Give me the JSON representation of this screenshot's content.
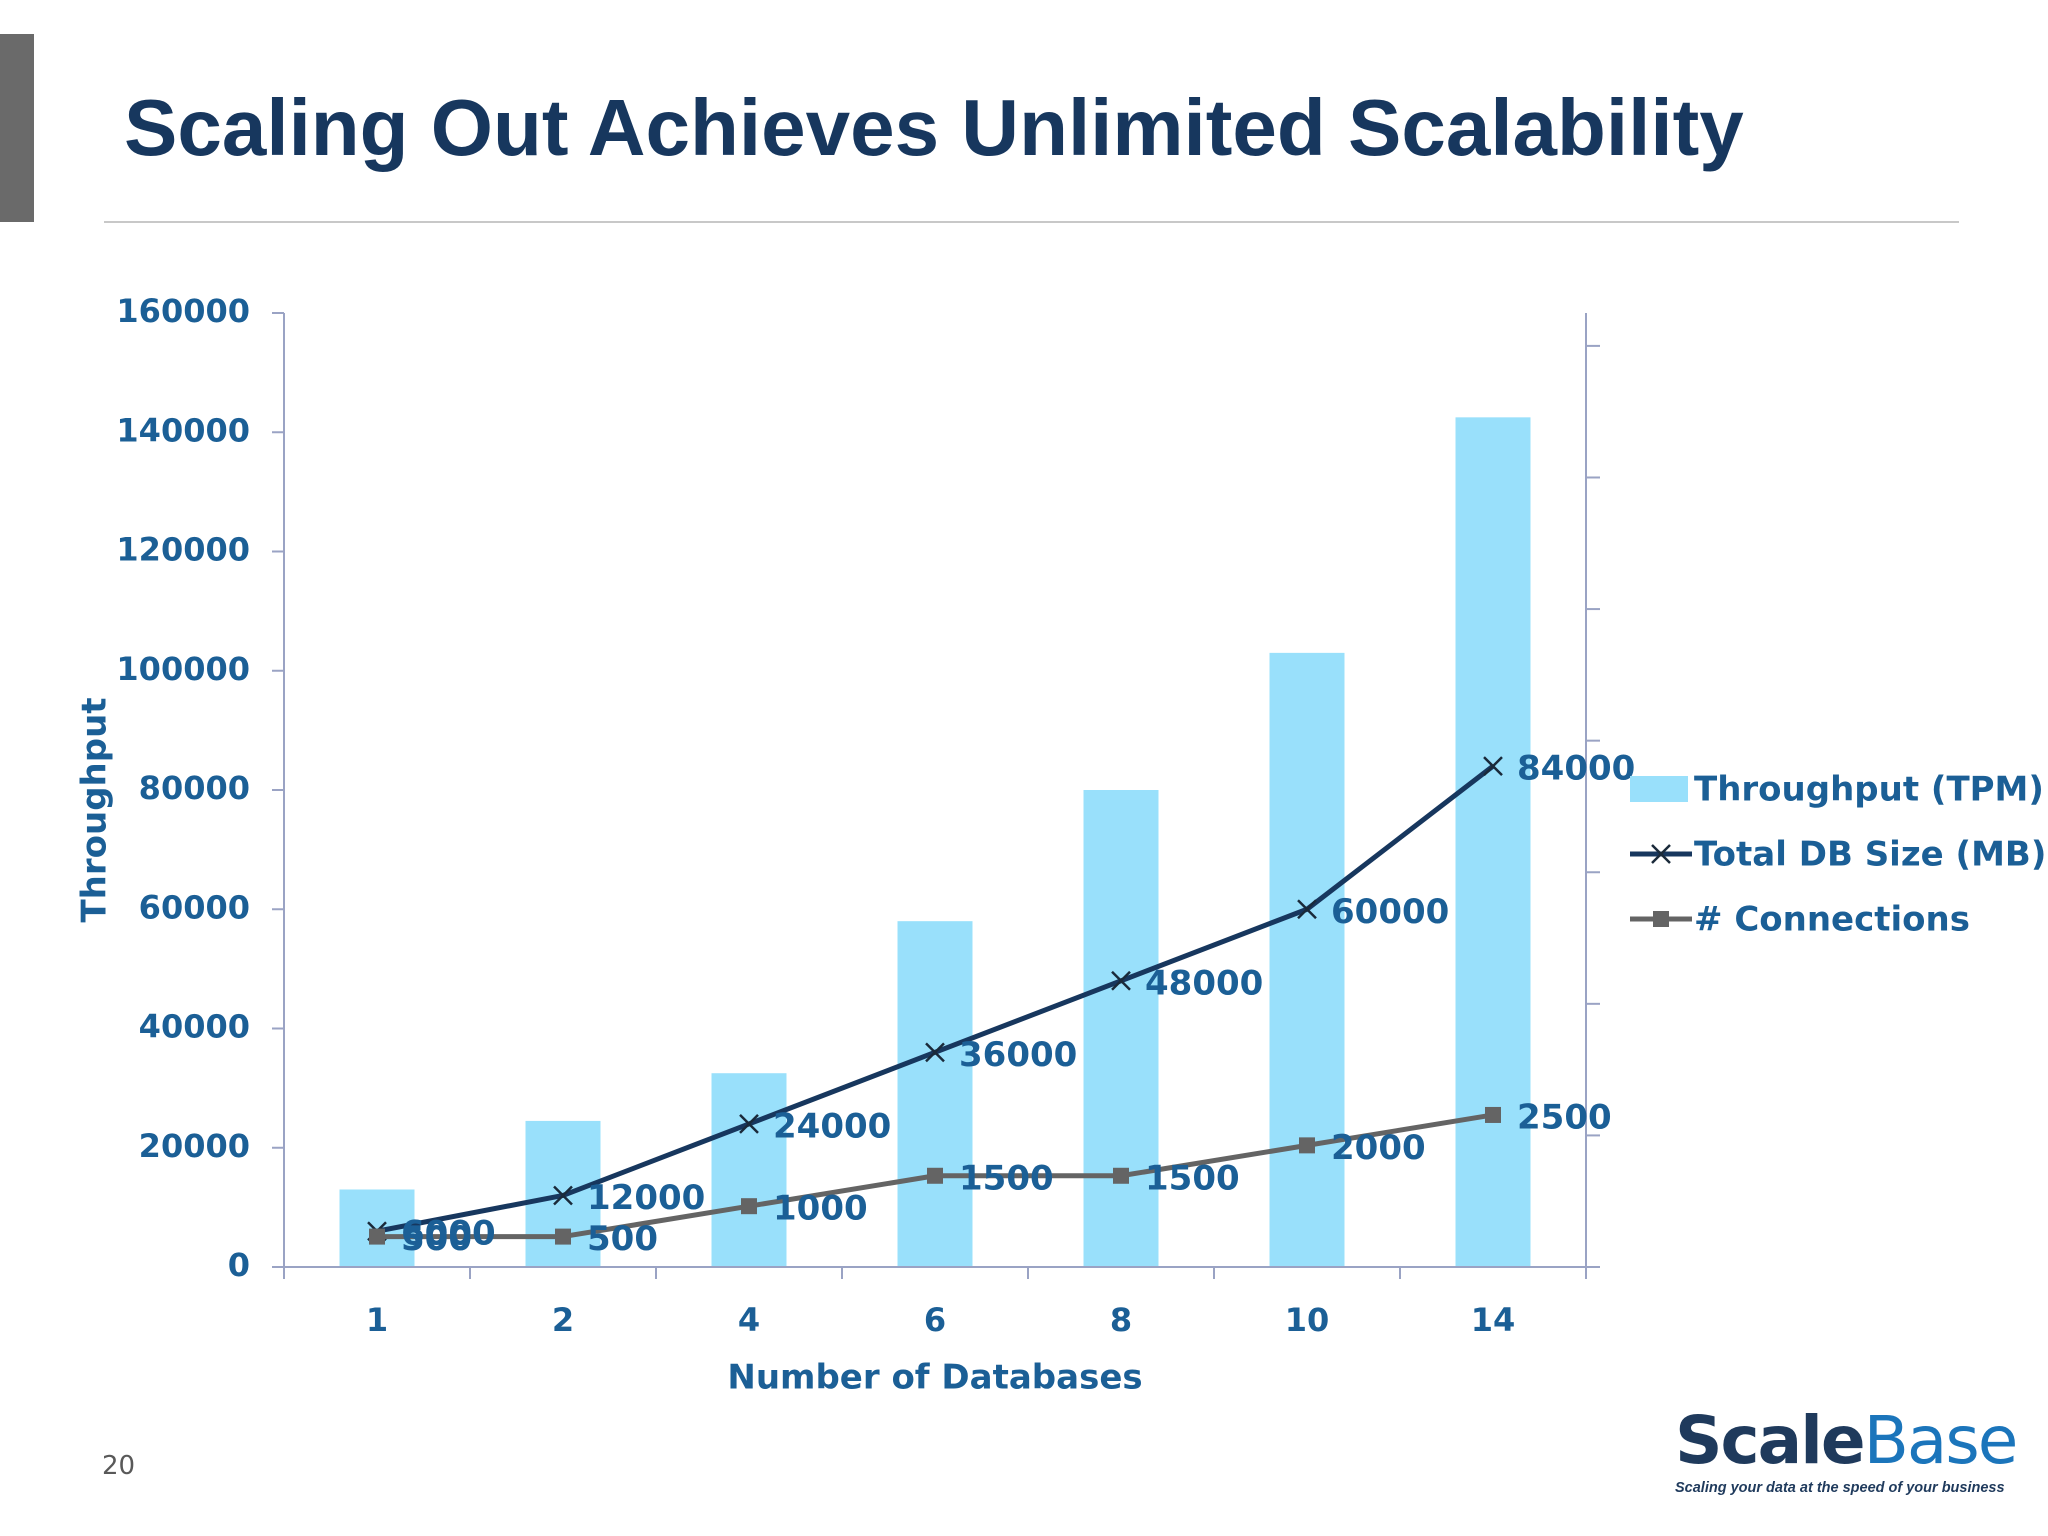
{
  "slide": {
    "title": "Scaling Out Achieves Unlimited Scalability",
    "page_number": "20"
  },
  "logo": {
    "word_scale": "Scale",
    "word_base": "Base",
    "tagline": "Scaling your data at the speed of your business"
  },
  "colors": {
    "title": "#17375e",
    "bars": "#99e0fb",
    "db_size_line": "#17375e",
    "connections_line": "#646464",
    "axis_text": "#1b5f96",
    "axis_line": "#9aa3c4"
  },
  "chart_data": {
    "type": "bar",
    "categories": [
      "1",
      "2",
      "4",
      "6",
      "8",
      "10",
      "14"
    ],
    "xlabel": "Number of Databases",
    "ylabel": "Throughput",
    "ylim": [
      0,
      160000
    ],
    "y_ticks": [
      "0",
      "20000",
      "40000",
      "60000",
      "80000",
      "100000",
      "120000",
      "140000",
      "160000"
    ],
    "secondary_y_tick_count": 7,
    "legend_position": "right",
    "grid": false,
    "series": [
      {
        "name": "Throughput (TPM)",
        "type": "bar",
        "values": [
          13000,
          24500,
          32500,
          58000,
          80000,
          103000,
          142500
        ]
      },
      {
        "name": "Total DB Size (MB)",
        "type": "line",
        "marker": "x",
        "values": [
          6000,
          12000,
          24000,
          36000,
          48000,
          60000,
          84000
        ],
        "labels": [
          "6000",
          "12000",
          "24000",
          "36000",
          "48000",
          "60000",
          "84000"
        ]
      },
      {
        "name": "# Connections",
        "type": "line",
        "marker": "square",
        "values": [
          500,
          500,
          1000,
          1500,
          1500,
          2000,
          2500
        ],
        "labels": [
          "500",
          "500",
          "1000",
          "1500",
          "1500",
          "2000",
          "2500"
        ]
      }
    ]
  }
}
